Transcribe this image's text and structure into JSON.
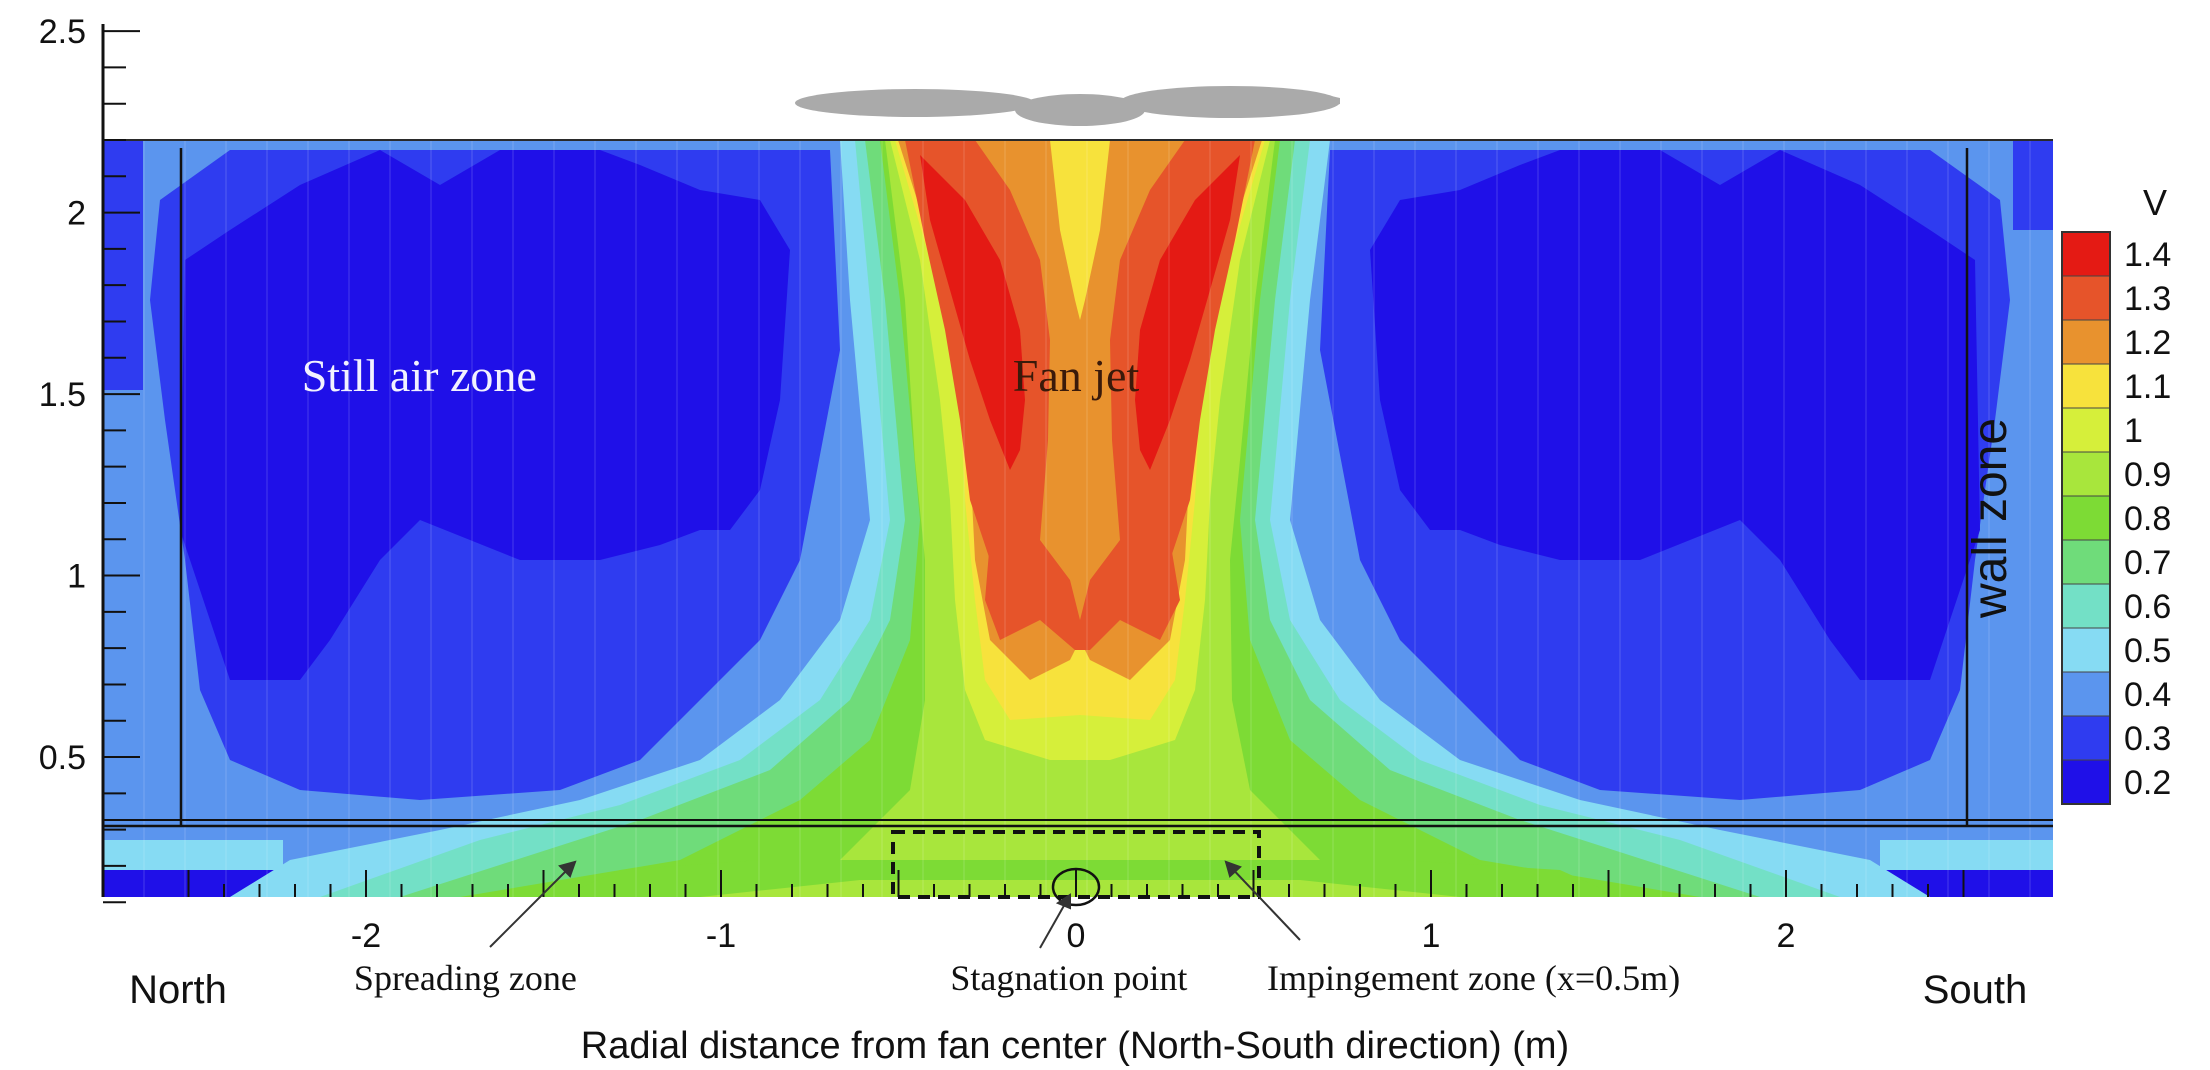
{
  "chart_data": {
    "type": "heatmap",
    "title": "",
    "xlabel": "Radial distance from fan center (North-South direction) (m)",
    "ylabel": "",
    "xlim": [
      -2.75,
      2.75
    ],
    "ylim": [
      0.1,
      2.6
    ],
    "xticks": [
      -2,
      -1,
      0,
      1,
      2
    ],
    "yticks": [
      0.5,
      1,
      1.5,
      2,
      2.5
    ],
    "x_end_labels": {
      "left": "North",
      "right": "South"
    },
    "colorbar": {
      "title": "V",
      "levels": [
        1.4,
        1.3,
        1.2,
        1.1,
        1,
        0.9,
        0.8,
        0.7,
        0.6,
        0.5,
        0.4,
        0.3,
        0.2
      ],
      "colors": [
        "#e41a14",
        "#e6542a",
        "#e8922e",
        "#f7e23c",
        "#d6ef3a",
        "#a8e63c",
        "#7ddb35",
        "#6fdc7a",
        "#73e0c6",
        "#86dbf3",
        "#5b95ee",
        "#2f3cf0",
        "#1f10e8"
      ]
    },
    "ceiling_height": 2.2,
    "floor_zone_top": 0.31,
    "wall_zone_x": [
      -2.5,
      2.5
    ],
    "impingement_box": {
      "x": [
        -0.5,
        0.5
      ],
      "y": [
        0.1,
        0.31
      ]
    },
    "stagnation_point": {
      "x": 0,
      "y": 0.15
    },
    "annotations": [
      {
        "id": "still-air",
        "text": "Still air zone",
        "x": -1.85,
        "y": 1.55
      },
      {
        "id": "fan-jet",
        "text": "Fan jet",
        "x": 0,
        "y": 1.55
      },
      {
        "id": "wall-zone",
        "text": "wall zone",
        "x": 2.62,
        "y": 1.2
      },
      {
        "id": "spreading",
        "text": "Spreading zone",
        "x": -1.72,
        "y": -0.06
      },
      {
        "id": "stagnation",
        "text": "Stagnation point",
        "x": -0.02,
        "y": -0.06
      },
      {
        "id": "impingement",
        "text": "Impingement zone (x=0.5m)",
        "x": 1.12,
        "y": -0.06
      }
    ]
  }
}
